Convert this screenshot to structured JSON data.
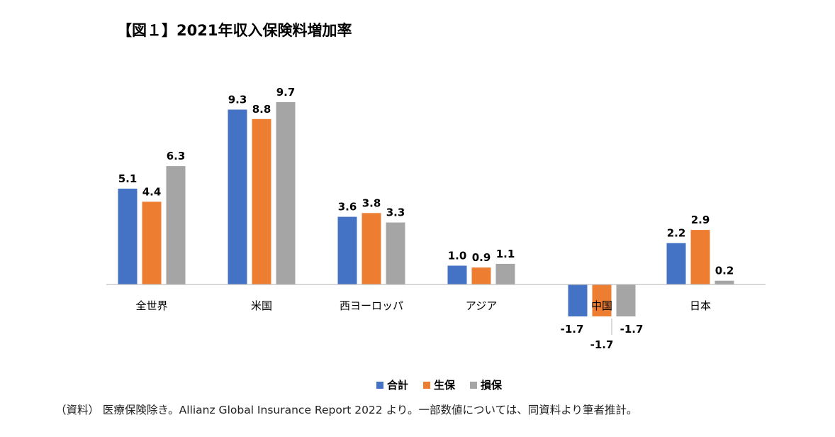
{
  "chart_data": {
    "type": "bar",
    "title": "【図１】2021年収入保険料増加率",
    "categories": [
      "全世界",
      "米国",
      "西ヨーロッパ",
      "アジア",
      "中国",
      "日本"
    ],
    "series": [
      {
        "name": "合計",
        "color": "#4472C4",
        "values": [
          5.1,
          9.3,
          3.6,
          1.0,
          -1.7,
          2.2
        ],
        "labels": [
          "5.1",
          "9.3",
          "3.6",
          "1.0",
          "-1.7",
          "2.2"
        ]
      },
      {
        "name": "生保",
        "color": "#ED7D31",
        "values": [
          4.4,
          8.8,
          3.8,
          0.9,
          -1.7,
          2.9
        ],
        "labels": [
          "4.4",
          "8.8",
          "3.8",
          "0.9",
          "-1.7",
          "2.9"
        ]
      },
      {
        "name": "損保",
        "color": "#A5A5A5",
        "values": [
          6.3,
          9.7,
          3.3,
          1.1,
          -1.7,
          0.2
        ],
        "labels": [
          "6.3",
          "9.7",
          "3.3",
          "1.1",
          "-1.7",
          "0.2"
        ]
      }
    ],
    "xlabel": "",
    "ylabel": "",
    "ylim": [
      -2.2,
      11.2
    ],
    "grid": false,
    "legend": "bottom"
  },
  "note": "（資料） 医療保険除き。Allianz Global Insurance Report 2022 より。一部数値については、同資料より筆者推計。"
}
